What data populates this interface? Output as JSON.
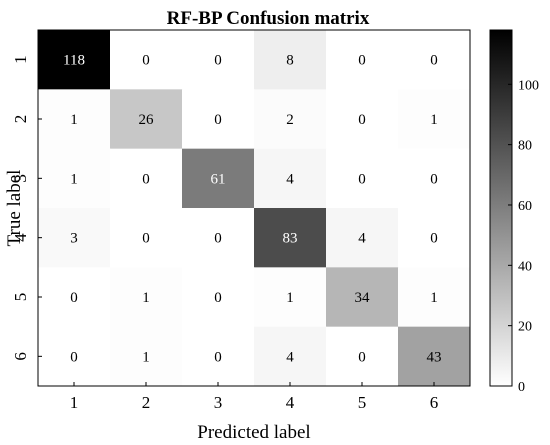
{
  "chart_data": {
    "type": "heatmap",
    "title": "RF-BP Confusion matrix",
    "xlabel": "Predicted label",
    "ylabel": "True label",
    "x_categories": [
      "1",
      "2",
      "3",
      "4",
      "5",
      "6"
    ],
    "y_categories": [
      "1",
      "2",
      "3",
      "4",
      "5",
      "6"
    ],
    "values": [
      [
        118,
        0,
        0,
        8,
        0,
        0
      ],
      [
        1,
        26,
        0,
        2,
        0,
        1
      ],
      [
        1,
        0,
        61,
        4,
        0,
        0
      ],
      [
        3,
        0,
        0,
        83,
        4,
        0
      ],
      [
        0,
        1,
        0,
        1,
        34,
        1
      ],
      [
        0,
        1,
        0,
        4,
        0,
        43
      ]
    ],
    "colorbar": {
      "range": [
        0,
        118
      ],
      "ticks": [
        0,
        20,
        40,
        60,
        80,
        100
      ],
      "colormap": "white-to-black"
    },
    "colors": {
      "low": "#ffffff",
      "high": "#000000"
    }
  }
}
